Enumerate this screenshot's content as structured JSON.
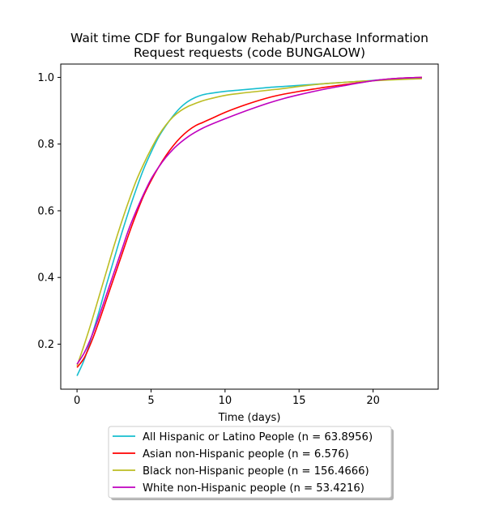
{
  "chart_data": {
    "type": "line",
    "title": "Wait time CDF for Bungalow Rehab/Purchase Information\nRequest  requests (code BUNGALOW)",
    "xlabel": "Time (days)",
    "ylabel": "",
    "xlim": [
      -1.1,
      24.4
    ],
    "ylim": [
      0.065,
      1.04
    ],
    "xticks": [
      0,
      5,
      10,
      15,
      20
    ],
    "yticks": [
      0.2,
      0.4,
      0.6,
      0.8,
      1.0
    ],
    "xtick_labels": [
      "0",
      "5",
      "10",
      "15",
      "20"
    ],
    "ytick_labels": [
      "0.2",
      "0.4",
      "0.6",
      "0.8",
      "1.0"
    ],
    "grid": false,
    "legend_placement": "below",
    "series": [
      {
        "name": "All Hispanic or Latino People (n = 63.8956)",
        "color": "#17becf",
        "x": [
          0,
          0.5,
          1,
          1.5,
          2,
          2.5,
          3,
          3.5,
          4,
          4.5,
          5,
          5.5,
          6,
          6.5,
          7,
          7.5,
          8,
          8.5,
          9,
          10,
          11,
          12,
          13,
          14,
          15,
          16,
          17,
          18,
          19,
          20,
          21,
          22,
          23.3
        ],
        "y": [
          0.105,
          0.155,
          0.225,
          0.3,
          0.38,
          0.455,
          0.53,
          0.6,
          0.665,
          0.725,
          0.775,
          0.82,
          0.855,
          0.885,
          0.91,
          0.928,
          0.94,
          0.948,
          0.952,
          0.958,
          0.962,
          0.966,
          0.97,
          0.973,
          0.976,
          0.979,
          0.982,
          0.985,
          0.988,
          0.991,
          0.994,
          0.996,
          0.998
        ]
      },
      {
        "name": "Asian non-Hispanic people (n = 6.576)",
        "color": "#ff0000",
        "x": [
          0,
          0.5,
          1,
          1.5,
          2,
          2.5,
          3,
          3.5,
          4,
          4.5,
          5,
          5.5,
          6,
          6.5,
          7,
          7.5,
          8,
          8.5,
          9,
          10,
          11,
          12,
          13,
          14,
          15,
          16,
          17,
          18,
          19,
          20,
          21,
          22,
          23.3
        ],
        "y": [
          0.13,
          0.16,
          0.21,
          0.27,
          0.335,
          0.4,
          0.465,
          0.53,
          0.59,
          0.645,
          0.69,
          0.73,
          0.765,
          0.795,
          0.82,
          0.84,
          0.855,
          0.865,
          0.875,
          0.895,
          0.912,
          0.927,
          0.94,
          0.95,
          0.958,
          0.965,
          0.972,
          0.978,
          0.984,
          0.99,
          0.995,
          0.998,
          1.0
        ]
      },
      {
        "name": "Black non-Hispanic people (n = 156.4666)",
        "color": "#bcbd22",
        "x": [
          0,
          0.5,
          1,
          1.5,
          2,
          2.5,
          3,
          3.5,
          4,
          4.5,
          5,
          5.5,
          6,
          6.5,
          7,
          7.5,
          8,
          8.5,
          9,
          10,
          11,
          12,
          13,
          14,
          15,
          16,
          17,
          18,
          19,
          20,
          21,
          22,
          23.3
        ],
        "y": [
          0.135,
          0.2,
          0.27,
          0.345,
          0.42,
          0.495,
          0.565,
          0.63,
          0.69,
          0.74,
          0.785,
          0.825,
          0.857,
          0.882,
          0.9,
          0.913,
          0.922,
          0.93,
          0.936,
          0.946,
          0.952,
          0.957,
          0.962,
          0.967,
          0.973,
          0.978,
          0.982,
          0.985,
          0.988,
          0.99,
          0.992,
          0.994,
          0.996
        ]
      },
      {
        "name": "White non-Hispanic people (n = 53.4216)",
        "color": "#bf00bf",
        "x": [
          0,
          0.5,
          1,
          1.5,
          2,
          2.5,
          3,
          3.5,
          4,
          4.5,
          5,
          5.5,
          6,
          6.5,
          7,
          7.5,
          8,
          8.5,
          9,
          10,
          11,
          12,
          13,
          14,
          15,
          16,
          17,
          18,
          19,
          20,
          21,
          22,
          23.3
        ],
        "y": [
          0.14,
          0.175,
          0.225,
          0.285,
          0.35,
          0.415,
          0.48,
          0.545,
          0.6,
          0.65,
          0.695,
          0.73,
          0.76,
          0.785,
          0.805,
          0.822,
          0.836,
          0.848,
          0.858,
          0.876,
          0.893,
          0.909,
          0.924,
          0.937,
          0.948,
          0.958,
          0.967,
          0.975,
          0.983,
          0.99,
          0.995,
          0.998,
          1.0
        ]
      }
    ]
  }
}
